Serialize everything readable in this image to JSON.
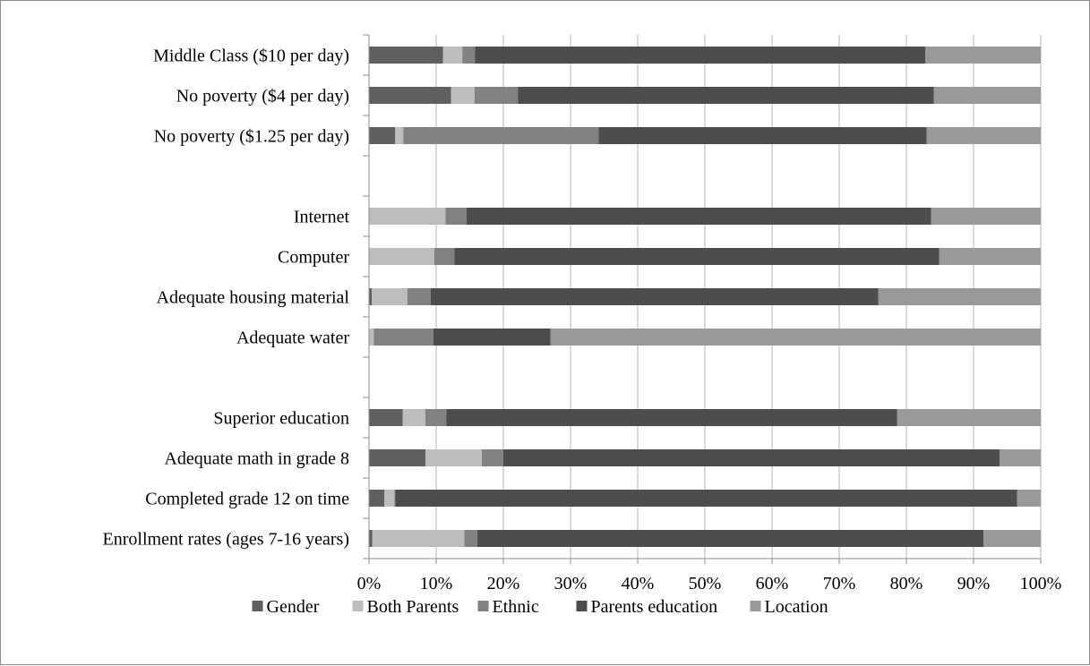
{
  "chart_data": {
    "type": "bar",
    "orientation": "horizontal",
    "stacked": "percent",
    "categories": [
      "Middle Class ($10 per day)",
      "No poverty ($4 per day)",
      "No poverty ($1.25 per day)",
      "",
      "Internet",
      "Computer",
      "Adequate housing material",
      "Adequate water",
      "",
      "Superior education",
      "Adequate math in grade 8",
      "Completed grade 12 on time",
      "Enrollment rates (ages 7-16 years)"
    ],
    "series": [
      {
        "name": "Gender",
        "color": "#5f5f5f",
        "values": [
          11.0,
          12.2,
          3.9,
          0,
          0,
          0,
          0.4,
          0,
          0,
          5.0,
          8.4,
          2.3,
          0.5
        ]
      },
      {
        "name": "Both Parents",
        "color": "#bdbdbd",
        "values": [
          2.9,
          3.5,
          1.2,
          0,
          11.4,
          9.7,
          5.3,
          0.7,
          0,
          3.4,
          8.4,
          1.5,
          13.7
        ]
      },
      {
        "name": "Ethnic",
        "color": "#828282",
        "values": [
          1.9,
          6.5,
          29.1,
          0,
          3.1,
          3.0,
          3.5,
          8.9,
          0,
          3.1,
          3.2,
          0.1,
          1.9
        ]
      },
      {
        "name": "Parents education",
        "color": "#4d4d4d",
        "values": [
          67.0,
          61.9,
          48.8,
          0,
          69.2,
          72.2,
          66.6,
          17.4,
          0,
          67.1,
          73.9,
          92.6,
          75.4
        ]
      },
      {
        "name": "Location",
        "color": "#999999",
        "values": [
          17.2,
          15.9,
          17.0,
          0,
          16.3,
          15.1,
          24.2,
          73.0,
          0,
          21.4,
          6.1,
          3.5,
          8.5
        ]
      }
    ],
    "x_ticks": [
      "0%",
      "10%",
      "20%",
      "30%",
      "40%",
      "50%",
      "60%",
      "70%",
      "80%",
      "90%",
      "100%"
    ],
    "xlim": [
      0,
      100
    ],
    "grid": true,
    "legend_position": "bottom"
  }
}
